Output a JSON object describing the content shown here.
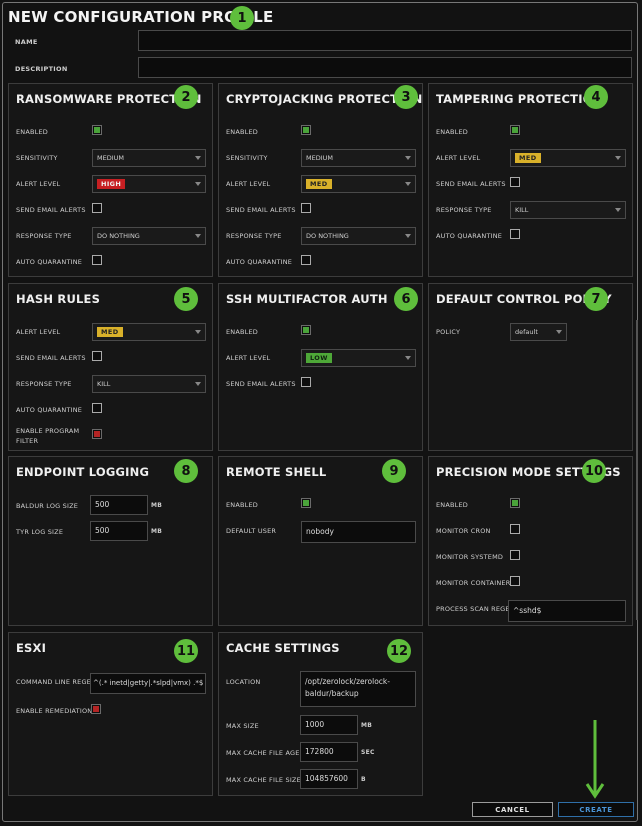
{
  "title": "NEW CONFIGURATION PROFILE",
  "name_label": "NAME",
  "description_label": "DESCRIPTION",
  "panels": {
    "ransomware": {
      "title": "RANSOMWARE PROTECTION",
      "badge": "2",
      "enabled_label": "ENABLED",
      "sensitivity_label": "SENSITIVITY",
      "sensitivity_value": "MEDIUM",
      "alert_level_label": "ALERT LEVEL",
      "alert_level_value": "HIGH",
      "email_label": "SEND EMAIL ALERTS",
      "response_label": "RESPONSE TYPE",
      "response_value": "DO NOTHING",
      "quarantine_label": "AUTO QUARANTINE"
    },
    "cryptojacking": {
      "title": "CRYPTOJACKING PROTECTION",
      "badge": "3",
      "enabled_label": "ENABLED",
      "sensitivity_label": "SENSITIVITY",
      "sensitivity_value": "MEDIUM",
      "alert_level_label": "ALERT LEVEL",
      "alert_level_value": "MED",
      "email_label": "SEND EMAIL ALERTS",
      "response_label": "RESPONSE TYPE",
      "response_value": "DO NOTHING",
      "quarantine_label": "AUTO QUARANTINE"
    },
    "tampering": {
      "title": "TAMPERING PROTECTION",
      "badge": "4",
      "enabled_label": "ENABLED",
      "alert_level_label": "ALERT LEVEL",
      "alert_level_value": "MED",
      "email_label": "SEND EMAIL ALERTS",
      "response_label": "RESPONSE TYPE",
      "response_value": "KILL",
      "quarantine_label": "AUTO QUARANTINE"
    },
    "hash": {
      "title": "HASH RULES",
      "badge": "5",
      "alert_level_label": "ALERT LEVEL",
      "alert_level_value": "MED",
      "email_label": "SEND EMAIL ALERTS",
      "response_label": "RESPONSE TYPE",
      "response_value": "KILL",
      "quarantine_label": "AUTO QUARANTINE",
      "filter_label_1": "ENABLE PROGRAM",
      "filter_label_2": "FILTER"
    },
    "ssh": {
      "title": "SSH MULTIFACTOR AUTH",
      "badge": "6",
      "enabled_label": "ENABLED",
      "alert_level_label": "ALERT LEVEL",
      "alert_level_value": "LOW",
      "email_label": "SEND EMAIL ALERTS"
    },
    "policy": {
      "title": "DEFAULT CONTROL POLICY",
      "badge": "7",
      "policy_label": "POLICY",
      "policy_value": "default"
    },
    "logging": {
      "title": "ENDPOINT LOGGING",
      "badge": "8",
      "baldur_label": "BALDUR LOG SIZE",
      "baldur_value": "500",
      "baldur_unit": "MB",
      "tyr_label": "TYR LOG SIZE",
      "tyr_value": "500",
      "tyr_unit": "MB"
    },
    "shell": {
      "title": "REMOTE SHELL",
      "badge": "9",
      "enabled_label": "ENABLED",
      "user_label": "DEFAULT USER",
      "user_value": "nobody"
    },
    "precision": {
      "title": "PRECISION MODE SETTINGS",
      "badge": "10",
      "enabled_label": "ENABLED",
      "cron_label": "MONITOR CRON",
      "systemd_label": "MONITOR SYSTEMD",
      "containerd_label": "MONITOR CONTAINERD",
      "regex_label": "PROCESS SCAN REGEX",
      "regex_value": "^sshd$"
    },
    "esxi": {
      "title": "ESXI",
      "badge": "11",
      "cmd_label": "COMMAND LINE REGEX",
      "cmd_value": "^(.* inetd|getty|.*slpd|vmx) .*$",
      "remediation_label": "ENABLE REMEDIATION"
    },
    "cache": {
      "title": "CACHE SETTINGS",
      "badge": "12",
      "location_label": "LOCATION",
      "location_line1": "/opt/zerolock/zerolock-",
      "location_line2": "baldur/backup",
      "maxsize_label": "MAX SIZE",
      "maxsize_value": "1000",
      "maxsize_unit": "MB",
      "age_label": "MAX CACHE FILE AGE",
      "age_value": "172800",
      "age_unit": "SEC",
      "filesize_label": "MAX CACHE FILE SIZE",
      "filesize_value": "104857600",
      "filesize_unit": "B"
    }
  },
  "title_badge": "1",
  "buttons": {
    "cancel": "CANCEL",
    "create": "CREATE"
  },
  "colors": {
    "badge": "#5fbe3c",
    "high": "#c61f22",
    "med": "#d9b12a",
    "low": "#4ea838",
    "create": "#2f6fa8"
  }
}
